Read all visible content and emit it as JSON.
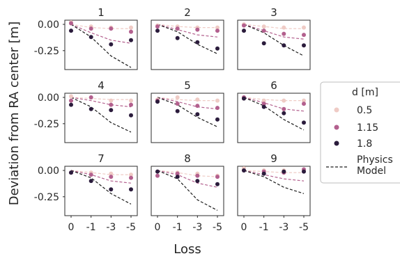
{
  "chart_data": {
    "type": "scatter",
    "layout": "3x3 small multiples with shared axes",
    "xlabel": "Loss",
    "ylabel": "Deviation from RA center [m]",
    "x_categories": [
      "0",
      "-1",
      "-3",
      "-5"
    ],
    "y_ticks": [
      0.0,
      -0.25
    ],
    "y_tick_labels": [
      "0.00",
      "-0.25"
    ],
    "ylim": [
      -0.43,
      0.04
    ],
    "grid": false,
    "legend": {
      "title": "d [m]",
      "placement": "right",
      "entries": [
        {
          "label": "0.5",
          "marker": "dot",
          "color": "#efcbc5"
        },
        {
          "label": "1.15",
          "marker": "dot",
          "color": "#b3608e"
        },
        {
          "label": "1.8",
          "marker": "dot",
          "color": "#2b1c3c"
        },
        {
          "label": "Physics\nModel",
          "marker": "dashed-line",
          "color": "#1a1a1a"
        }
      ]
    },
    "panels": [
      {
        "title": "1",
        "points": {
          "0.5": [
            0.02,
            -0.02,
            -0.03,
            -0.03
          ],
          "1.15": [
            0.01,
            -0.04,
            -0.04,
            -0.07
          ],
          "1.8": [
            -0.06,
            -0.12,
            -0.19,
            -0.15
          ]
        },
        "model": {
          "0.5": [
            0.0,
            -0.03,
            -0.04,
            -0.04
          ],
          "1.15": [
            0.0,
            -0.08,
            -0.15,
            -0.18
          ],
          "1.8": [
            0.0,
            -0.12,
            -0.3,
            -0.41
          ]
        }
      },
      {
        "title": "2",
        "points": {
          "0.5": [
            -0.01,
            -0.02,
            -0.03,
            -0.03
          ],
          "1.15": [
            -0.02,
            -0.04,
            -0.05,
            -0.06
          ],
          "1.8": [
            -0.06,
            -0.13,
            -0.17,
            -0.23
          ]
        },
        "model": {
          "0.5": [
            0.0,
            -0.02,
            -0.03,
            -0.03
          ],
          "1.15": [
            0.0,
            -0.05,
            -0.1,
            -0.12
          ],
          "1.8": [
            0.0,
            -0.07,
            -0.19,
            -0.28
          ]
        }
      },
      {
        "title": "3",
        "points": {
          "0.5": [
            0.0,
            -0.02,
            -0.03,
            -0.03
          ],
          "1.15": [
            -0.01,
            -0.06,
            -0.09,
            -0.1
          ],
          "1.8": [
            -0.06,
            -0.18,
            -0.2,
            -0.2
          ]
        },
        "model": {
          "0.5": [
            0.0,
            -0.02,
            -0.04,
            -0.04
          ],
          "1.15": [
            0.0,
            -0.06,
            -0.12,
            -0.14
          ],
          "1.8": [
            0.0,
            -0.08,
            -0.2,
            -0.3
          ]
        }
      },
      {
        "title": "4",
        "points": {
          "0.5": [
            0.01,
            0.0,
            -0.03,
            -0.03
          ],
          "1.15": [
            -0.03,
            0.0,
            -0.07,
            -0.07
          ],
          "1.8": [
            -0.07,
            -0.11,
            -0.12,
            -0.17
          ]
        },
        "model": {
          "0.5": [
            0.0,
            -0.01,
            -0.02,
            -0.02
          ],
          "1.15": [
            0.0,
            -0.03,
            -0.07,
            -0.09
          ],
          "1.8": [
            0.0,
            -0.09,
            -0.24,
            -0.33
          ]
        }
      },
      {
        "title": "5",
        "points": {
          "0.5": [
            -0.02,
            0.0,
            -0.02,
            -0.03
          ],
          "1.15": [
            -0.03,
            -0.06,
            -0.08,
            -0.1
          ],
          "1.8": [
            -0.04,
            -0.13,
            -0.16,
            -0.21
          ]
        },
        "model": {
          "0.5": [
            0.0,
            -0.02,
            -0.03,
            -0.03
          ],
          "1.15": [
            0.0,
            -0.04,
            -0.09,
            -0.11
          ],
          "1.8": [
            0.0,
            -0.07,
            -0.19,
            -0.28
          ]
        }
      },
      {
        "title": "6",
        "points": {
          "0.5": [
            0.0,
            -0.03,
            -0.03,
            -0.03
          ],
          "1.15": [
            0.0,
            -0.06,
            -0.11,
            -0.06
          ],
          "1.8": [
            -0.01,
            -0.09,
            -0.15,
            -0.24
          ]
        },
        "model": {
          "0.5": [
            0.0,
            -0.02,
            -0.03,
            -0.03
          ],
          "1.15": [
            0.0,
            -0.05,
            -0.11,
            -0.13
          ],
          "1.8": [
            0.0,
            -0.08,
            -0.21,
            -0.31
          ]
        }
      },
      {
        "title": "7",
        "points": {
          "0.5": [
            -0.02,
            -0.02,
            -0.03,
            -0.04
          ],
          "1.15": [
            -0.02,
            -0.04,
            -0.06,
            -0.07
          ],
          "1.8": [
            -0.02,
            -0.1,
            -0.18,
            -0.18
          ]
        },
        "model": {
          "0.5": [
            0.0,
            -0.02,
            -0.04,
            -0.04
          ],
          "1.15": [
            0.0,
            -0.04,
            -0.1,
            -0.12
          ],
          "1.8": [
            0.0,
            -0.07,
            -0.22,
            -0.32
          ]
        }
      },
      {
        "title": "8",
        "points": {
          "0.5": [
            -0.01,
            -0.02,
            -0.03,
            -0.05
          ],
          "1.15": [
            -0.05,
            -0.03,
            -0.05,
            -0.06
          ],
          "1.8": [
            -0.01,
            -0.06,
            -0.1,
            -0.13
          ]
        },
        "model": {
          "0.5": [
            0.0,
            -0.02,
            -0.05,
            -0.06
          ],
          "1.15": [
            0.0,
            -0.04,
            -0.12,
            -0.16
          ],
          "1.8": [
            0.0,
            -0.08,
            -0.28,
            -0.38
          ]
        }
      },
      {
        "title": "9",
        "points": {
          "0.5": [
            0.02,
            0.0,
            0.0,
            0.0
          ],
          "1.15": [
            0.0,
            -0.01,
            -0.02,
            0.01
          ],
          "1.8": [
            0.0,
            -0.03,
            -0.01,
            -0.01
          ]
        },
        "model": {
          "0.5": [
            0.0,
            -0.01,
            -0.02,
            -0.02
          ],
          "1.15": [
            0.0,
            -0.04,
            -0.08,
            -0.1
          ],
          "1.8": [
            0.0,
            -0.06,
            -0.16,
            -0.22
          ]
        }
      }
    ]
  }
}
